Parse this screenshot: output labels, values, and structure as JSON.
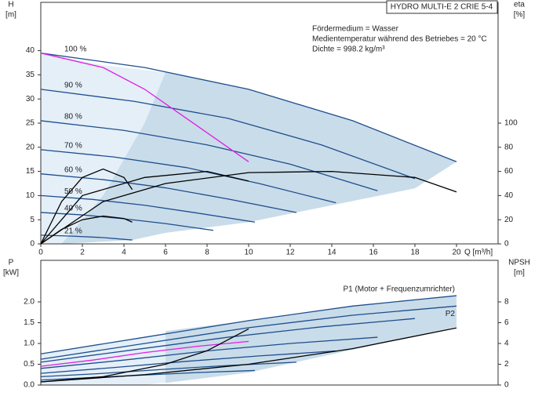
{
  "header": {
    "title": "HYDRO MULTI-E 2 CRIE 5-4",
    "notes": [
      "Fördermedium = Wasser",
      "Medientemperatur während des Betriebes = 20 °C",
      "Dichte = 998.2 kg/m³"
    ]
  },
  "chart_data": [
    {
      "type": "line",
      "ylabel": [
        "H",
        "[m]"
      ],
      "y2label": [
        "eta",
        "[%]"
      ],
      "xlabel": "Q [m³/h]",
      "xlim": [
        0,
        22
      ],
      "xticks": [
        0,
        2,
        4,
        6,
        8,
        10,
        12,
        14,
        16,
        18,
        20
      ],
      "ylim": [
        0,
        50
      ],
      "yticks": [
        0,
        5,
        10,
        15,
        20,
        25,
        30,
        35,
        40
      ],
      "y2lim": [
        0,
        200
      ],
      "y2ticks": [
        0,
        20,
        40,
        60,
        80,
        100
      ],
      "regions": [
        {
          "color": "#e4eff8",
          "x": [
            0,
            3,
            6,
            10,
            15,
            20,
            18,
            14,
            10,
            6,
            4.4,
            1,
            0
          ],
          "y": [
            39.5,
            37,
            35.5,
            32,
            25.5,
            17,
            11.5,
            8,
            4.5,
            2.3,
            0.8,
            0,
            0
          ]
        },
        {
          "color": "#c9dcea",
          "x": [
            1,
            3,
            5,
            6,
            10,
            15,
            20,
            18,
            14,
            10,
            6,
            4.4,
            1
          ],
          "y": [
            0,
            10,
            25,
            35.5,
            32,
            25.5,
            17,
            11.5,
            8,
            4.5,
            2.3,
            0.8,
            0
          ]
        }
      ],
      "series": [
        {
          "name": "100 %",
          "color": "#1f4e8c",
          "x": [
            0,
            5,
            10,
            15,
            20
          ],
          "values": [
            39.5,
            36.5,
            32,
            25.5,
            17
          ]
        },
        {
          "name": "90 %",
          "color": "#1f4e8c",
          "x": [
            0,
            4.5,
            9,
            13.5,
            18
          ],
          "values": [
            32,
            29.5,
            26,
            20.5,
            13.5
          ]
        },
        {
          "name": "80 %",
          "color": "#1f4e8c",
          "x": [
            0,
            4,
            8,
            12,
            16.2
          ],
          "values": [
            25.5,
            23.5,
            20.5,
            16.5,
            11
          ]
        },
        {
          "name": "70 %",
          "color": "#1f4e8c",
          "x": [
            0,
            3.5,
            7,
            10.5,
            14.2
          ],
          "values": [
            19.5,
            18,
            15.8,
            12.5,
            8.5
          ]
        },
        {
          "name": "60 %",
          "color": "#1f4e8c",
          "x": [
            0,
            3,
            6,
            9,
            12.3
          ],
          "values": [
            14.5,
            13.3,
            11.6,
            9.3,
            6.5
          ]
        },
        {
          "name": "50 %",
          "color": "#1f4e8c",
          "x": [
            0,
            2.5,
            5,
            7.5,
            10.3
          ],
          "values": [
            10,
            9.2,
            8,
            6.4,
            4.5
          ]
        },
        {
          "name": "40 %",
          "color": "#1f4e8c",
          "x": [
            0,
            2,
            4,
            6,
            8.3
          ],
          "values": [
            6.5,
            6,
            5.2,
            4.2,
            2.8
          ]
        },
        {
          "name": "21 %",
          "color": "#1f4e8c",
          "x": [
            0,
            1.5,
            3,
            4.4
          ],
          "values": [
            1.8,
            1.6,
            1.3,
            0.8
          ]
        },
        {
          "color": "#e020e0",
          "x": [
            0,
            3,
            5,
            7,
            9,
            10
          ],
          "values": [
            39.5,
            36.5,
            32,
            26,
            20,
            17
          ]
        },
        {
          "color": "#000000",
          "axis": "y2",
          "x": [
            0,
            3,
            6,
            10,
            14,
            18,
            20
          ],
          "values": [
            0,
            35,
            50,
            59,
            60,
            55,
            43
          ]
        },
        {
          "color": "#000000",
          "axis": "y2",
          "x": [
            0,
            2,
            5,
            8,
            10
          ],
          "values": [
            0,
            40,
            55,
            60,
            52
          ]
        },
        {
          "color": "#000000",
          "axis": "y2",
          "x": [
            0,
            1,
            2,
            3,
            4,
            4.4
          ],
          "values": [
            0,
            35,
            55,
            62,
            55,
            45
          ]
        },
        {
          "color": "#000000",
          "axis": "y2",
          "x": [
            0,
            1,
            2,
            3,
            4,
            4.4
          ],
          "values": [
            0,
            12,
            20,
            23,
            21,
            18
          ]
        }
      ]
    },
    {
      "type": "line",
      "ylabel": [
        "P",
        "[kW]"
      ],
      "y2label": [
        "NPSH",
        "[m]"
      ],
      "xlim": [
        0,
        22
      ],
      "ylim": [
        0,
        3
      ],
      "yticks": [
        {
          "value": 0,
          "label": "0.0"
        },
        0.5,
        {
          "value": 1,
          "label": "1.0"
        },
        1.5,
        {
          "value": 2,
          "label": "2.0"
        }
      ],
      "y2lim": [
        0,
        12
      ],
      "y2ticks": [
        0,
        2,
        4,
        6,
        8
      ],
      "regions": [
        {
          "color": "#e4eff8",
          "x": [
            0,
            5,
            10,
            15,
            20,
            20,
            10,
            5,
            0
          ],
          "y": [
            0.75,
            1.15,
            1.55,
            1.9,
            2.15,
            1.4,
            0.3,
            0,
            0
          ]
        },
        {
          "color": "#c9dcea",
          "x": [
            6,
            10,
            15,
            20,
            20,
            10,
            6
          ],
          "y": [
            1.3,
            1.55,
            1.9,
            2.15,
            1.4,
            0.3,
            0.05
          ]
        }
      ],
      "series": [
        {
          "name": "P1 (Motor + Frequenzumrichter)",
          "color": "#1f4e8c",
          "x": [
            0,
            5,
            10,
            15,
            20
          ],
          "values": [
            0.75,
            1.15,
            1.55,
            1.9,
            2.15
          ]
        },
        {
          "name": "P2",
          "color": "#1f4e8c",
          "x": [
            0,
            5,
            10,
            15,
            20
          ],
          "values": [
            0.62,
            1,
            1.38,
            1.68,
            1.9
          ]
        },
        {
          "color": "#1f4e8c",
          "x": [
            0,
            4.5,
            9,
            13.5,
            18
          ],
          "values": [
            0.55,
            0.85,
            1.15,
            1.4,
            1.6
          ]
        },
        {
          "color": "#1f4e8c",
          "x": [
            0,
            4,
            8,
            12,
            16.2
          ],
          "values": [
            0.4,
            0.6,
            0.82,
            1,
            1.15
          ]
        },
        {
          "color": "#1f4e8c",
          "x": [
            0,
            3.5,
            7,
            10.5,
            14.2
          ],
          "values": [
            0.28,
            0.42,
            0.57,
            0.7,
            0.82
          ]
        },
        {
          "color": "#1f4e8c",
          "x": [
            0,
            3,
            6,
            9,
            12.3
          ],
          "values": [
            0.2,
            0.28,
            0.38,
            0.47,
            0.55
          ]
        },
        {
          "color": "#1f4e8c",
          "x": [
            0,
            2.5,
            5,
            7.5,
            10.3
          ],
          "values": [
            0.12,
            0.18,
            0.24,
            0.3,
            0.35
          ]
        },
        {
          "color": "#e020e0",
          "x": [
            0,
            2.5,
            5,
            7.5,
            10
          ],
          "values": [
            0.45,
            0.6,
            0.78,
            0.93,
            1.05
          ]
        },
        {
          "color": "#000000",
          "axis": "y2",
          "x": [
            0,
            5,
            10,
            15,
            20
          ],
          "values": [
            0.3,
            1,
            2,
            3.5,
            5.5
          ]
        },
        {
          "color": "#000000",
          "axis": "y2",
          "x": [
            0,
            3,
            6,
            8,
            10
          ],
          "values": [
            0.3,
            0.8,
            2,
            3.3,
            5.4
          ]
        }
      ]
    }
  ]
}
